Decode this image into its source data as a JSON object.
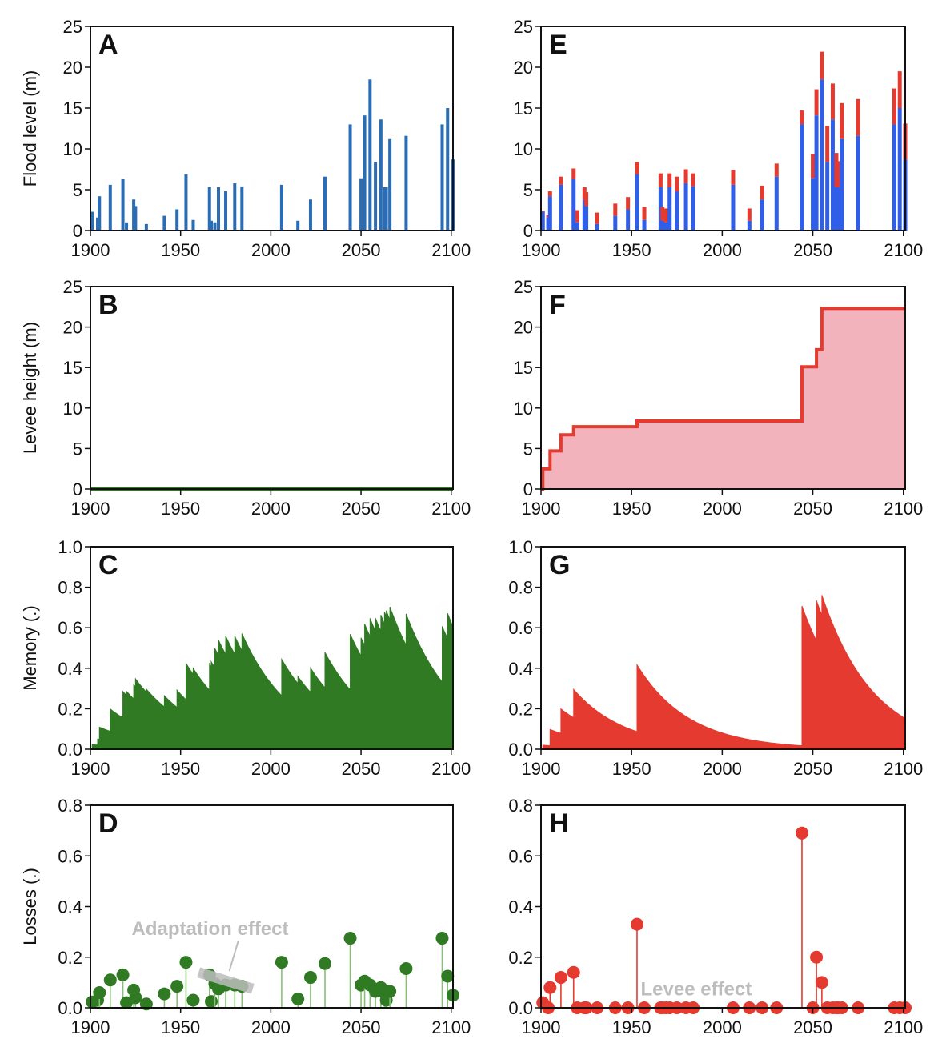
{
  "colors": {
    "axis": "#111111",
    "blue": "#2a6db4",
    "blue_bright": "#2f5ee8",
    "red": "#e53a2f",
    "pink_fill": "#f3b3bd",
    "green": "#2f7a22",
    "green_stem": "#86c075",
    "annotation": "#bdbdbd"
  },
  "chart_data": [
    {
      "id": "A",
      "letter": "A",
      "type": "bar",
      "ylabel": "Flood level (m)",
      "xlim": [
        1900,
        2101
      ],
      "ylim": [
        0,
        25
      ],
      "xticks": [
        1900,
        1950,
        2000,
        2050,
        2100
      ],
      "yticks": [
        0,
        5,
        10,
        15,
        20,
        25
      ],
      "x": [
        1901,
        1904,
        1905,
        1911,
        1918,
        1920,
        1924,
        1925,
        1931,
        1941,
        1948,
        1953,
        1957,
        1966,
        1967,
        1969,
        1971,
        1975,
        1980,
        1984,
        2006,
        2015,
        2022,
        2030,
        2044,
        2050,
        2052,
        2055,
        2058,
        2061,
        2063,
        2064,
        2066,
        2075,
        2095,
        2098,
        2101
      ],
      "values": [
        2.3,
        1.6,
        4.2,
        5.6,
        6.3,
        1.0,
        3.8,
        3.0,
        0.8,
        1.8,
        2.6,
        6.9,
        1.3,
        5.3,
        1.2,
        1.0,
        5.3,
        4.8,
        5.8,
        5.4,
        5.6,
        1.2,
        3.8,
        6.6,
        13.0,
        6.4,
        14.1,
        18.5,
        8.4,
        13.6,
        5.3,
        5.3,
        11.2,
        11.6,
        13.0,
        15.0,
        8.7
      ]
    },
    {
      "id": "B",
      "letter": "B",
      "type": "line",
      "ylabel": "Levee height (m)",
      "xlim": [
        1900,
        2101
      ],
      "ylim": [
        0,
        25
      ],
      "xticks": [
        1900,
        1950,
        2000,
        2050,
        2100
      ],
      "yticks": [
        0,
        5,
        10,
        15,
        20,
        25
      ],
      "x": [
        1900,
        2101
      ],
      "y": [
        0,
        0
      ]
    },
    {
      "id": "C",
      "letter": "C",
      "type": "area",
      "ylabel": "Memory (.)",
      "xlim": [
        1900,
        2101
      ],
      "ylim": [
        0,
        1.0
      ],
      "xticks": [
        1900,
        1950,
        2000,
        2050,
        2100
      ],
      "yticks": [
        0.0,
        0.2,
        0.4,
        0.6,
        0.8,
        1.0
      ],
      "ytick_labels": [
        "0.0",
        "0.2",
        "0.4",
        "0.6",
        "0.8",
        "1.0"
      ],
      "event_years": [
        1901,
        1904,
        1905,
        1911,
        1918,
        1920,
        1924,
        1925,
        1931,
        1941,
        1948,
        1953,
        1957,
        1966,
        1967,
        1969,
        1971,
        1975,
        1980,
        1984,
        2006,
        2015,
        2022,
        2030,
        2044,
        2050,
        2052,
        2055,
        2058,
        2061,
        2063,
        2064,
        2066,
        2075,
        2095,
        2098,
        2101
      ],
      "event_losses": [
        0.023,
        0.03,
        0.06,
        0.11,
        0.13,
        0.02,
        0.07,
        0.04,
        0.015,
        0.055,
        0.085,
        0.18,
        0.03,
        0.13,
        0.025,
        0.095,
        0.075,
        0.09,
        0.09,
        0.085,
        0.18,
        0.035,
        0.12,
        0.175,
        0.275,
        0.09,
        0.105,
        0.09,
        0.065,
        0.08,
        0.06,
        0.03,
        0.065,
        0.155,
        0.275,
        0.125,
        0.05
      ],
      "decay_rate": 0.035
    },
    {
      "id": "D",
      "letter": "D",
      "type": "scatter",
      "ylabel": "Losses (.)",
      "xlim": [
        1900,
        2101
      ],
      "ylim": [
        0,
        0.8
      ],
      "xticks": [
        1900,
        1950,
        2000,
        2050,
        2100
      ],
      "yticks": [
        0.0,
        0.2,
        0.4,
        0.6,
        0.8
      ],
      "ytick_labels": [
        "0.0",
        "0.2",
        "0.4",
        "0.6",
        "0.8"
      ],
      "x": [
        1901,
        1904,
        1905,
        1911,
        1918,
        1920,
        1924,
        1925,
        1931,
        1941,
        1948,
        1953,
        1957,
        1966,
        1967,
        1969,
        1971,
        1975,
        1980,
        1984,
        2006,
        2015,
        2022,
        2030,
        2044,
        2050,
        2052,
        2055,
        2058,
        2061,
        2063,
        2064,
        2066,
        2075,
        2095,
        2098,
        2101
      ],
      "values": [
        0.023,
        0.03,
        0.06,
        0.11,
        0.13,
        0.02,
        0.07,
        0.04,
        0.015,
        0.055,
        0.085,
        0.18,
        0.03,
        0.13,
        0.025,
        0.095,
        0.075,
        0.09,
        0.09,
        0.085,
        0.18,
        0.035,
        0.12,
        0.175,
        0.275,
        0.09,
        0.105,
        0.09,
        0.065,
        0.08,
        0.06,
        0.03,
        0.065,
        0.155,
        0.275,
        0.125,
        0.05
      ],
      "annotation": {
        "text": "Adaptation effect",
        "x": 1965,
        "y": 0.32,
        "band_from": [
          1960,
          0.14
        ],
        "band_to": [
          1990,
          0.075
        ],
        "pointer_from": [
          1982,
          0.265
        ],
        "pointer_to": [
          1977,
          0.145
        ]
      }
    },
    {
      "id": "E",
      "letter": "E",
      "type": "bar",
      "xlim": [
        1900,
        2101
      ],
      "ylim": [
        0,
        25
      ],
      "xticks": [
        1900,
        1950,
        2000,
        2050,
        2100
      ],
      "yticks": [
        0,
        5,
        10,
        15,
        20,
        25
      ],
      "x": [
        1901,
        1904,
        1905,
        1911,
        1918,
        1920,
        1924,
        1925,
        1931,
        1941,
        1948,
        1953,
        1957,
        1966,
        1967,
        1969,
        1971,
        1975,
        1980,
        1984,
        2006,
        2015,
        2022,
        2030,
        2044,
        2050,
        2052,
        2055,
        2058,
        2061,
        2063,
        2064,
        2066,
        2075,
        2095,
        2098,
        2101
      ],
      "series": [
        {
          "values": [
            2.3,
            1.6,
            4.2,
            5.6,
            6.3,
            1.0,
            3.8,
            3.0,
            0.8,
            1.8,
            2.6,
            6.9,
            1.3,
            5.3,
            1.2,
            1.0,
            5.3,
            4.8,
            5.8,
            5.4,
            5.6,
            1.2,
            3.8,
            6.6,
            13.0,
            6.4,
            14.1,
            18.5,
            8.4,
            13.6,
            5.3,
            5.3,
            11.2,
            11.6,
            13.0,
            15.0,
            8.7
          ]
        },
        {
          "values": [
            0.1,
            0.3,
            0.6,
            1.0,
            1.3,
            1.5,
            1.5,
            1.7,
            1.4,
            1.5,
            1.5,
            1.5,
            1.6,
            1.7,
            1.7,
            1.7,
            1.7,
            1.8,
            1.7,
            1.6,
            1.8,
            1.5,
            1.7,
            1.6,
            1.7,
            3.0,
            3.2,
            3.4,
            4.4,
            4.4,
            4.2,
            3.2,
            4.4,
            4.5,
            4.4,
            4.5,
            4.4
          ]
        }
      ]
    },
    {
      "id": "F",
      "letter": "F",
      "type": "area",
      "xlim": [
        1900,
        2101
      ],
      "ylim": [
        0,
        25
      ],
      "xticks": [
        1900,
        1950,
        2000,
        2050,
        2100
      ],
      "yticks": [
        0,
        5,
        10,
        15,
        20,
        25
      ],
      "x": [
        1900,
        1901,
        1905,
        1911,
        1918,
        1953,
        2044,
        2052,
        2055,
        2101
      ],
      "y": [
        0,
        2.5,
        4.7,
        6.7,
        7.7,
        8.4,
        15.1,
        17.2,
        22.3,
        22.3
      ]
    },
    {
      "id": "G",
      "letter": "G",
      "type": "area",
      "xlim": [
        1900,
        2101
      ],
      "ylim": [
        0,
        1.0
      ],
      "xticks": [
        1900,
        1950,
        2000,
        2050,
        2100
      ],
      "yticks": [
        0.0,
        0.2,
        0.4,
        0.6,
        0.8,
        1.0
      ],
      "ytick_labels": [
        "0.0",
        "0.2",
        "0.4",
        "0.6",
        "0.8",
        "1.0"
      ],
      "event_years": [
        1901,
        1905,
        1911,
        1918,
        1953,
        2044,
        2052,
        2055
      ],
      "event_losses": [
        0.02,
        0.08,
        0.12,
        0.14,
        0.33,
        0.69,
        0.2,
        0.1
      ],
      "decay_rate": 0.035
    },
    {
      "id": "H",
      "letter": "H",
      "type": "scatter",
      "xlim": [
        1900,
        2101
      ],
      "ylim": [
        0,
        0.8
      ],
      "xticks": [
        1900,
        1950,
        2000,
        2050,
        2100
      ],
      "yticks": [
        0.0,
        0.2,
        0.4,
        0.6,
        0.8
      ],
      "ytick_labels": [
        "0.0",
        "0.2",
        "0.4",
        "0.6",
        "0.8"
      ],
      "x": [
        1901,
        1904,
        1905,
        1911,
        1918,
        1920,
        1924,
        1925,
        1931,
        1941,
        1948,
        1953,
        1957,
        1966,
        1967,
        1969,
        1971,
        1975,
        1980,
        1984,
        2006,
        2015,
        2022,
        2030,
        2044,
        2050,
        2052,
        2055,
        2058,
        2061,
        2063,
        2064,
        2066,
        2075,
        2095,
        2098,
        2101
      ],
      "values": [
        0.02,
        0.0,
        0.08,
        0.12,
        0.14,
        0.0,
        0.0,
        0.0,
        0.0,
        0.0,
        0.0,
        0.33,
        0.0,
        0.0,
        0.0,
        0.0,
        0.0,
        0.0,
        0.0,
        0.0,
        0.0,
        0.0,
        0.0,
        0.0,
        0.69,
        0.0,
        0.2,
        0.1,
        0.0,
        0.0,
        0.0,
        0.0,
        0.0,
        0.0,
        0.0,
        0.0,
        0.0
      ],
      "annotation": {
        "text": "Levee effect",
        "x": 1955,
        "y": 0.08
      }
    }
  ]
}
